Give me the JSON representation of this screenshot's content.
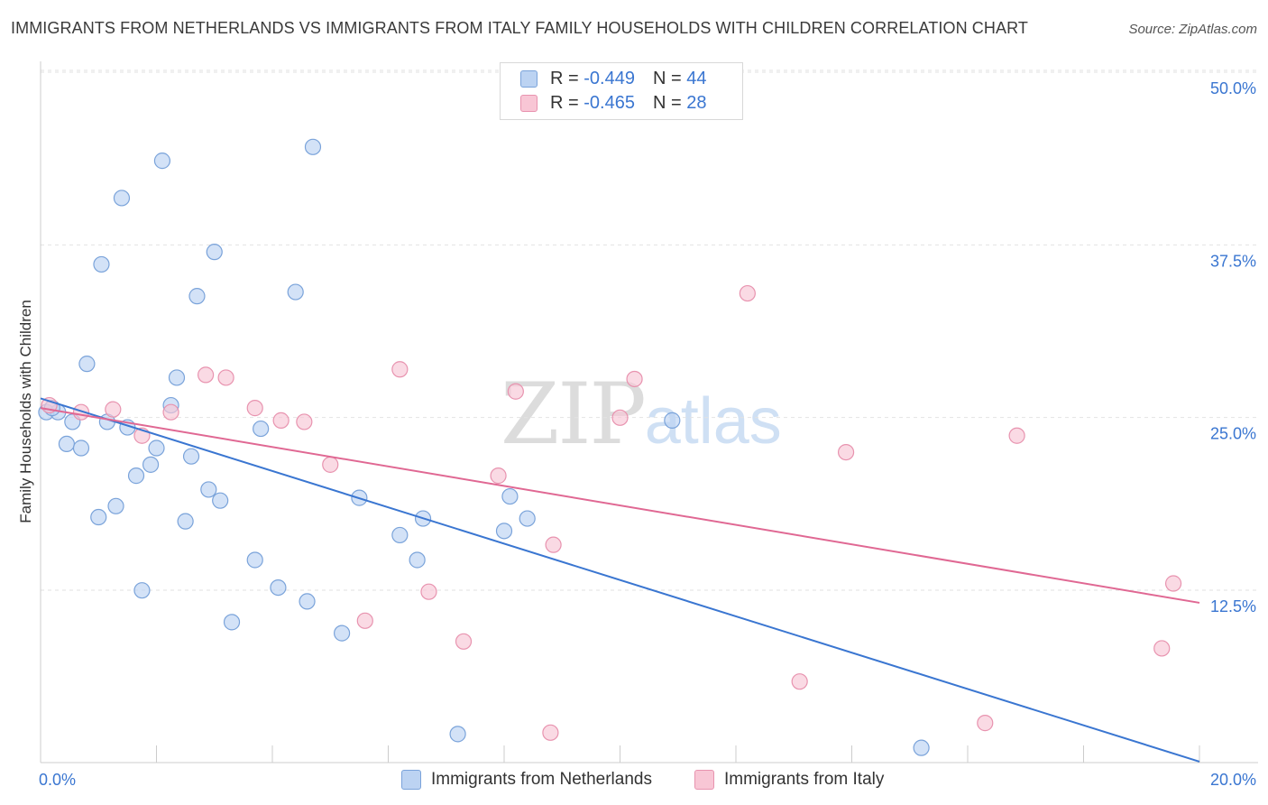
{
  "title": "IMMIGRANTS FROM NETHERLANDS VS IMMIGRANTS FROM ITALY FAMILY HOUSEHOLDS WITH CHILDREN CORRELATION CHART",
  "source": "Source: ZipAtlas.com",
  "watermark": {
    "zip": "ZIP",
    "atlas": "atlas"
  },
  "colors": {
    "netherlands_fill": "#bcd3f2",
    "netherlands_stroke": "#7aa3da",
    "netherlands_line": "#3a76d1",
    "italy_fill": "#f8c6d5",
    "italy_stroke": "#e893af",
    "italy_line": "#e06893",
    "grid": "#e2e2e2",
    "tick_label": "#3a76d1"
  },
  "legend": {
    "rows": [
      {
        "r_label": "R =",
        "r_value": "-0.449",
        "n_label": "N =",
        "n_value": "44"
      },
      {
        "r_label": "R =",
        "r_value": "-0.465",
        "n_label": "N =",
        "n_value": "28"
      }
    ]
  },
  "chart_data": {
    "type": "scatter",
    "title": "IMMIGRANTS FROM NETHERLANDS VS IMMIGRANTS FROM ITALY FAMILY HOUSEHOLDS WITH CHILDREN CORRELATION CHART",
    "xlabel": "",
    "ylabel": "Family Households with Children",
    "xlim": [
      0,
      20
    ],
    "ylim": [
      0,
      52
    ],
    "x_tick_labels": [
      "0.0%",
      "20.0%"
    ],
    "y_ticks": [
      12.5,
      25.0,
      37.5,
      50.0
    ],
    "y_tick_labels": [
      "12.5%",
      "25.0%",
      "37.5%",
      "50.0%"
    ],
    "grid": true,
    "legend_position": "top-center",
    "series": [
      {
        "name": "Immigrants from Netherlands",
        "r": -0.449,
        "n": 44,
        "trend": {
          "x": [
            0.0,
            20.0
          ],
          "y": [
            27.5,
            1.2
          ]
        },
        "points": [
          [
            0.1,
            26.5
          ],
          [
            0.3,
            26.5
          ],
          [
            0.2,
            26.8
          ],
          [
            0.55,
            25.8
          ],
          [
            0.45,
            24.2
          ],
          [
            0.7,
            23.9
          ],
          [
            0.8,
            30.0
          ],
          [
            1.0,
            18.9
          ],
          [
            1.05,
            37.2
          ],
          [
            1.15,
            25.8
          ],
          [
            1.3,
            19.7
          ],
          [
            1.4,
            42.0
          ],
          [
            1.5,
            25.4
          ],
          [
            1.65,
            21.9
          ],
          [
            1.75,
            13.6
          ],
          [
            1.9,
            22.7
          ],
          [
            2.0,
            23.9
          ],
          [
            2.1,
            44.7
          ],
          [
            2.25,
            27.0
          ],
          [
            2.35,
            29.0
          ],
          [
            2.5,
            18.6
          ],
          [
            2.6,
            23.3
          ],
          [
            2.7,
            34.9
          ],
          [
            2.9,
            20.9
          ],
          [
            3.0,
            38.1
          ],
          [
            3.1,
            20.1
          ],
          [
            3.3,
            11.3
          ],
          [
            3.7,
            15.8
          ],
          [
            3.8,
            25.3
          ],
          [
            4.1,
            13.8
          ],
          [
            4.4,
            35.2
          ],
          [
            4.6,
            12.8
          ],
          [
            4.7,
            45.7
          ],
          [
            5.2,
            10.5
          ],
          [
            5.5,
            20.3
          ],
          [
            6.2,
            17.6
          ],
          [
            6.5,
            15.8
          ],
          [
            6.6,
            18.8
          ],
          [
            7.2,
            3.2
          ],
          [
            8.0,
            17.9
          ],
          [
            8.1,
            20.4
          ],
          [
            8.4,
            18.8
          ],
          [
            10.9,
            25.9
          ],
          [
            15.2,
            2.2
          ]
        ]
      },
      {
        "name": "Immigrants from Italy",
        "r": -0.465,
        "n": 28,
        "trend": {
          "x": [
            0.0,
            20.0
          ],
          "y": [
            26.8,
            12.7
          ]
        },
        "points": [
          [
            0.15,
            27.0
          ],
          [
            0.7,
            26.5
          ],
          [
            1.25,
            26.7
          ],
          [
            1.75,
            24.8
          ],
          [
            2.25,
            26.5
          ],
          [
            2.85,
            29.2
          ],
          [
            3.2,
            29.0
          ],
          [
            3.7,
            26.8
          ],
          [
            4.15,
            25.9
          ],
          [
            4.55,
            25.8
          ],
          [
            5.0,
            22.7
          ],
          [
            5.6,
            11.4
          ],
          [
            6.2,
            29.6
          ],
          [
            6.7,
            13.5
          ],
          [
            7.3,
            9.9
          ],
          [
            7.9,
            21.9
          ],
          [
            8.2,
            28.0
          ],
          [
            8.85,
            16.9
          ],
          [
            8.8,
            3.3
          ],
          [
            10.0,
            26.1
          ],
          [
            10.25,
            28.9
          ],
          [
            12.2,
            35.1
          ],
          [
            13.1,
            7.0
          ],
          [
            13.9,
            23.6
          ],
          [
            16.3,
            4.0
          ],
          [
            16.85,
            24.8
          ],
          [
            19.35,
            9.4
          ],
          [
            19.55,
            14.1
          ]
        ]
      }
    ]
  }
}
